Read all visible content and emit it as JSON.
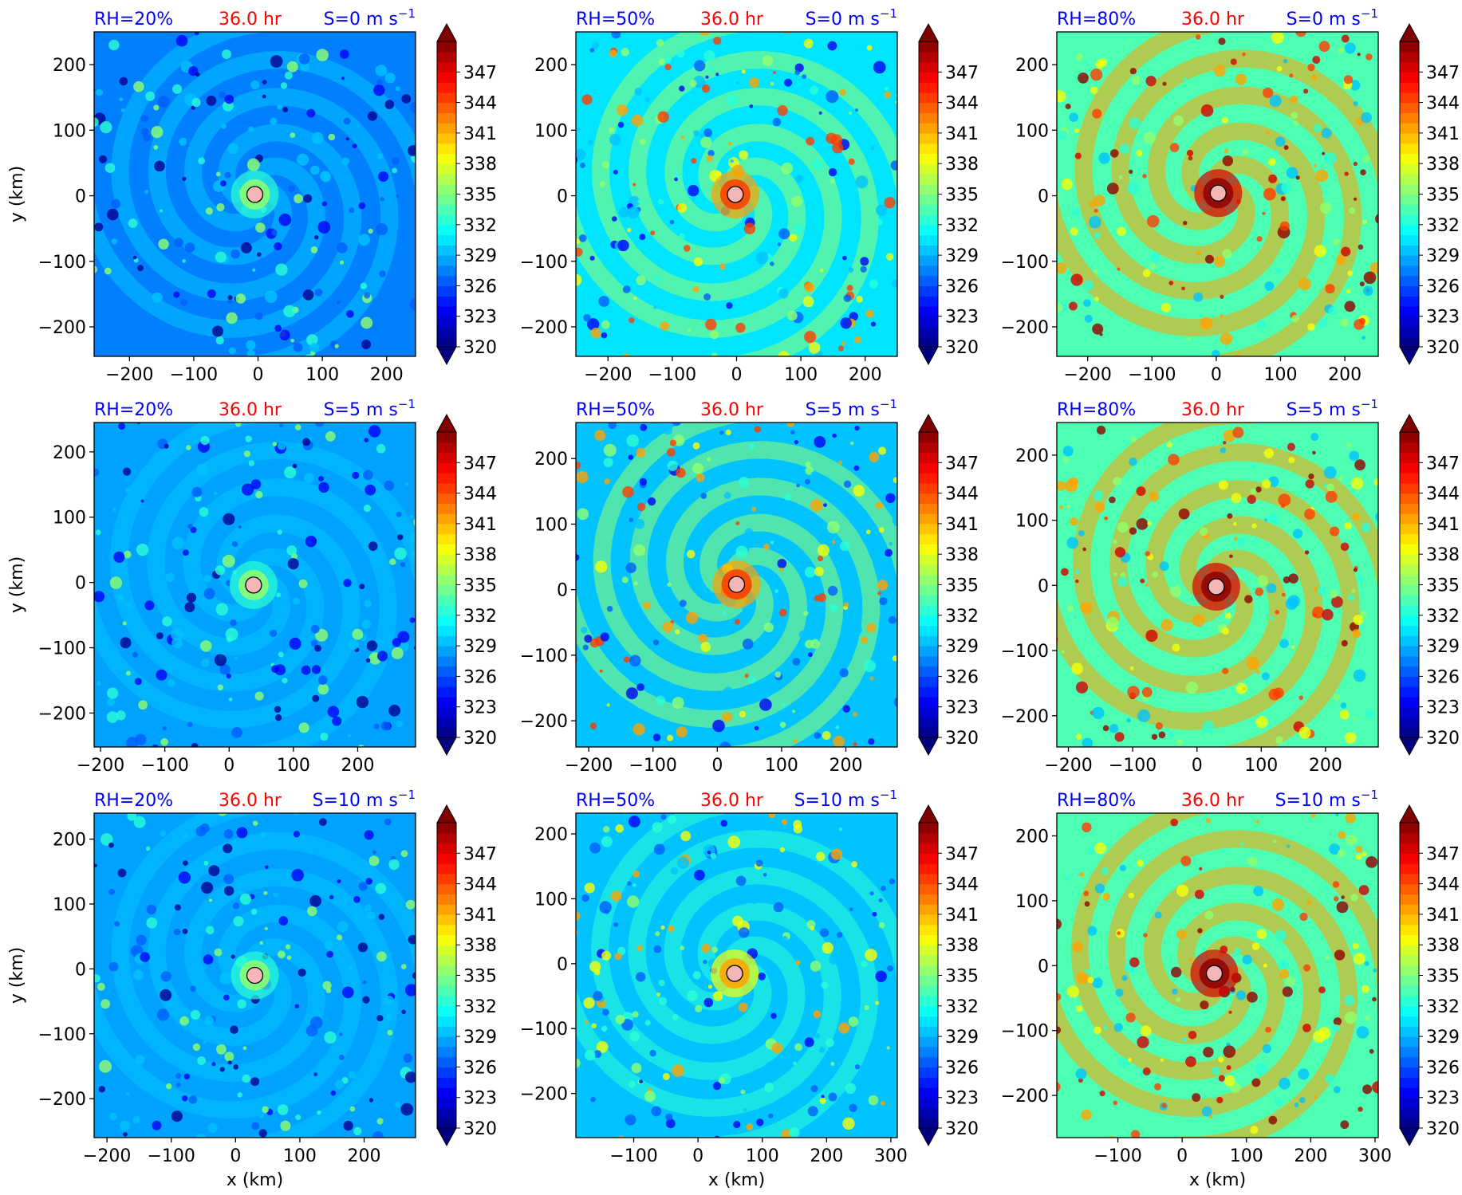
{
  "figure": {
    "colorbar_ticks": [
      "320",
      "323",
      "326",
      "329",
      "332",
      "335",
      "338",
      "341",
      "344",
      "347"
    ],
    "colorbar_vmin": 320,
    "colorbar_vmax": 350,
    "colorbar_levels": 30,
    "xlabel": "x (km)",
    "ylabel": "y (km)",
    "time_label": "36.0 hr",
    "colors": {
      "annot_blue": "#0000ff",
      "annot_red": "#ff0000",
      "center_marker": "#f4b6b6"
    }
  },
  "chart_data": [
    {
      "type": "heatmap",
      "rh_label": "RH=20%",
      "time_label": "36.0 hr",
      "shear_label": "S=0 m s",
      "shear_exp": "−1",
      "xlim": [
        -255,
        245
      ],
      "ylim": [
        -245,
        250
      ],
      "xticks": [
        -200,
        -100,
        0,
        100,
        200
      ],
      "yticks": [
        -200,
        -100,
        0,
        100,
        200
      ],
      "center": [
        -5,
        2
      ],
      "base_value": 327,
      "field_values": [
        320,
        323,
        326,
        329,
        332,
        335
      ],
      "show_ylabel": true,
      "show_xlabel": false
    },
    {
      "type": "heatmap",
      "rh_label": "RH=50%",
      "time_label": "36.0 hr",
      "shear_label": "S=0 m s",
      "shear_exp": "−1",
      "xlim": [
        -250,
        250
      ],
      "ylim": [
        -245,
        250
      ],
      "xticks": [
        -200,
        -100,
        0,
        100,
        200
      ],
      "yticks": [
        -200,
        -100,
        0,
        100,
        200
      ],
      "center": [
        -2,
        2
      ],
      "base_value": 330,
      "field_values": [
        323,
        326,
        329,
        332,
        335,
        338,
        341,
        344
      ],
      "show_ylabel": false,
      "show_xlabel": false
    },
    {
      "type": "heatmap",
      "rh_label": "RH=80%",
      "time_label": "36.0 hr",
      "shear_label": "S=0 m s",
      "shear_exp": "−1",
      "xlim": [
        -248,
        252
      ],
      "ylim": [
        -245,
        250
      ],
      "xticks": [
        -200,
        -100,
        0,
        100,
        200
      ],
      "yticks": [
        -200,
        -100,
        0,
        100,
        200
      ],
      "center": [
        3,
        4
      ],
      "base_value": 333,
      "field_values": [
        329,
        332,
        335,
        338,
        341,
        344,
        347,
        350
      ],
      "show_ylabel": false,
      "show_xlabel": false
    },
    {
      "type": "heatmap",
      "rh_label": "RH=20%",
      "time_label": "36.0 hr",
      "shear_label": "S=5 m s",
      "shear_exp": "−1",
      "xlim": [
        -210,
        290
      ],
      "ylim": [
        -252,
        245
      ],
      "xticks": [
        -200,
        -100,
        0,
        100,
        200
      ],
      "yticks": [
        -200,
        -100,
        0,
        100,
        200
      ],
      "center": [
        38,
        -4
      ],
      "base_value": 328,
      "field_values": [
        320,
        323,
        326,
        329,
        332,
        335
      ],
      "show_ylabel": true,
      "show_xlabel": false
    },
    {
      "type": "heatmap",
      "rh_label": "RH=50%",
      "time_label": "36.0 hr",
      "shear_label": "S=5 m s",
      "shear_exp": "−1",
      "xlim": [
        -220,
        280
      ],
      "ylim": [
        -240,
        255
      ],
      "xticks": [
        -200,
        -100,
        0,
        100,
        200
      ],
      "yticks": [
        -200,
        -100,
        0,
        100,
        200
      ],
      "center": [
        30,
        8
      ],
      "base_value": 329,
      "field_values": [
        323,
        326,
        329,
        332,
        335,
        338,
        341,
        344
      ],
      "show_ylabel": false,
      "show_xlabel": false
    },
    {
      "type": "heatmap",
      "rh_label": "RH=80%",
      "time_label": "36.0 hr",
      "shear_label": "S=5 m s",
      "shear_exp": "−1",
      "xlim": [
        -218,
        282
      ],
      "ylim": [
        -248,
        250
      ],
      "xticks": [
        -200,
        -100,
        0,
        100,
        200
      ],
      "yticks": [
        -200,
        -100,
        0,
        100,
        200
      ],
      "center": [
        30,
        -2
      ],
      "base_value": 333,
      "field_values": [
        329,
        332,
        335,
        338,
        341,
        344,
        347,
        350
      ],
      "show_ylabel": false,
      "show_xlabel": false
    },
    {
      "type": "heatmap",
      "rh_label": "RH=20%",
      "time_label": "36.0 hr",
      "shear_label": "S=10 m s",
      "shear_exp": "−1",
      "xlim": [
        -220,
        280
      ],
      "ylim": [
        -260,
        240
      ],
      "xticks": [
        -200,
        -100,
        0,
        100,
        200
      ],
      "yticks": [
        -200,
        -100,
        0,
        100,
        200
      ],
      "center": [
        30,
        -10
      ],
      "base_value": 328,
      "field_values": [
        320,
        323,
        326,
        329,
        332,
        335
      ],
      "show_ylabel": true,
      "show_xlabel": true
    },
    {
      "type": "heatmap",
      "rh_label": "RH=50%",
      "time_label": "36.0 hr",
      "shear_label": "S=10 m s",
      "shear_exp": "−1",
      "xlim": [
        -190,
        310
      ],
      "ylim": [
        -268,
        232
      ],
      "xticks": [
        -100,
        0,
        100,
        200,
        300
      ],
      "yticks": [
        -200,
        -100,
        0,
        100,
        200
      ],
      "center": [
        57,
        -15
      ],
      "base_value": 329,
      "field_values": [
        323,
        326,
        329,
        332,
        335,
        338,
        341
      ],
      "show_ylabel": false,
      "show_xlabel": true
    },
    {
      "type": "heatmap",
      "rh_label": "RH=80%",
      "time_label": "36.0 hr",
      "shear_label": "S=10 m s",
      "shear_exp": "−1",
      "xlim": [
        -195,
        305
      ],
      "ylim": [
        -265,
        235
      ],
      "xticks": [
        -100,
        0,
        100,
        200,
        300
      ],
      "yticks": [
        -200,
        -100,
        0,
        100,
        200
      ],
      "center": [
        50,
        -12
      ],
      "base_value": 333,
      "field_values": [
        329,
        332,
        335,
        338,
        341,
        344,
        347,
        350
      ],
      "show_ylabel": false,
      "show_xlabel": true
    }
  ]
}
